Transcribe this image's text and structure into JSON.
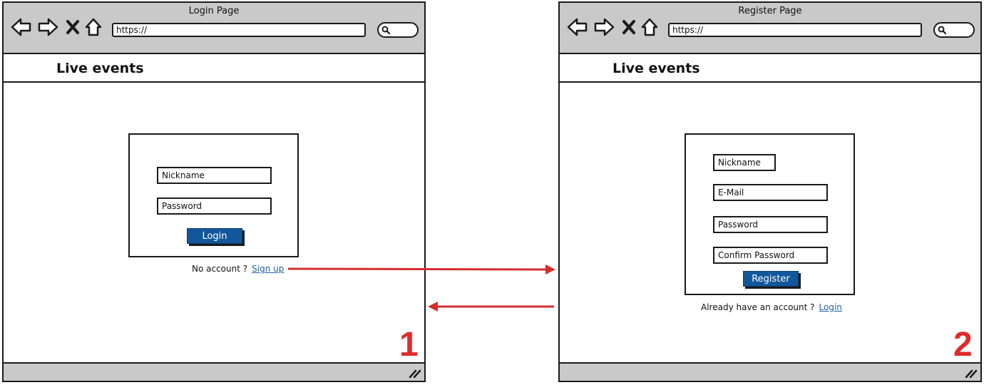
{
  "login_window": {
    "title": "Login Page",
    "url": "https://",
    "site_title": "Live events",
    "fields": [
      "Nickname",
      "Password"
    ],
    "button": "Login",
    "prompt": "No account ?",
    "link": "Sign up",
    "number": "1"
  },
  "register_window": {
    "title": "Register Page",
    "url": "https://",
    "site_title": "Live events",
    "fields": [
      "Nickname",
      "E-Mail",
      "Password",
      "Confirm Password"
    ],
    "button": "Register",
    "prompt": "Already have an account ?",
    "link": "Login",
    "number": "2"
  },
  "colors": {
    "chrome": "#c9c9c9",
    "button": "#12579a",
    "link": "#1f5fa6",
    "arrow": "#d32f2f",
    "number": "#e02b2b"
  },
  "icons": [
    "back-arrow-icon",
    "forward-arrow-icon",
    "close-icon",
    "home-icon",
    "search-icon",
    "resize-grip-icon"
  ]
}
